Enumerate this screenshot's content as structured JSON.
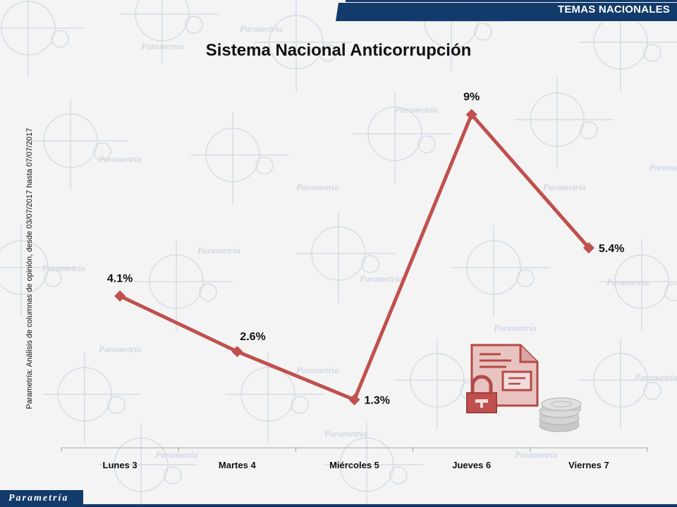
{
  "header": {
    "section_label": "TEMAS NACIONALES"
  },
  "side_note": "Parametría: Análisis de columnas de opinión, desde 03/07/2017 hasta 07/07/2017",
  "footer": {
    "logo_text": "Parametría"
  },
  "watermark_text": "Parametría",
  "colors": {
    "line": "#c0504d",
    "header_band": "#123a6b",
    "icon_red": "#c0504d",
    "coins": "#bdbdbd"
  },
  "icons": [
    "document-lock-icon",
    "coins-icon"
  ],
  "chart_data": {
    "type": "line",
    "title": "Sistema Nacional Anticorrupción",
    "categories": [
      "Lunes 3",
      "Martes 4",
      "Miércoles 5",
      "Jueves 6",
      "Viernes 7"
    ],
    "values": [
      4.1,
      2.6,
      1.3,
      9,
      5.4
    ],
    "value_labels": [
      "4.1%",
      "2.6%",
      "1.3%",
      "9%",
      "5.4%"
    ],
    "xlabel": "",
    "ylabel": "",
    "ylim": [
      0,
      10
    ],
    "grid": false,
    "legend": "none"
  }
}
